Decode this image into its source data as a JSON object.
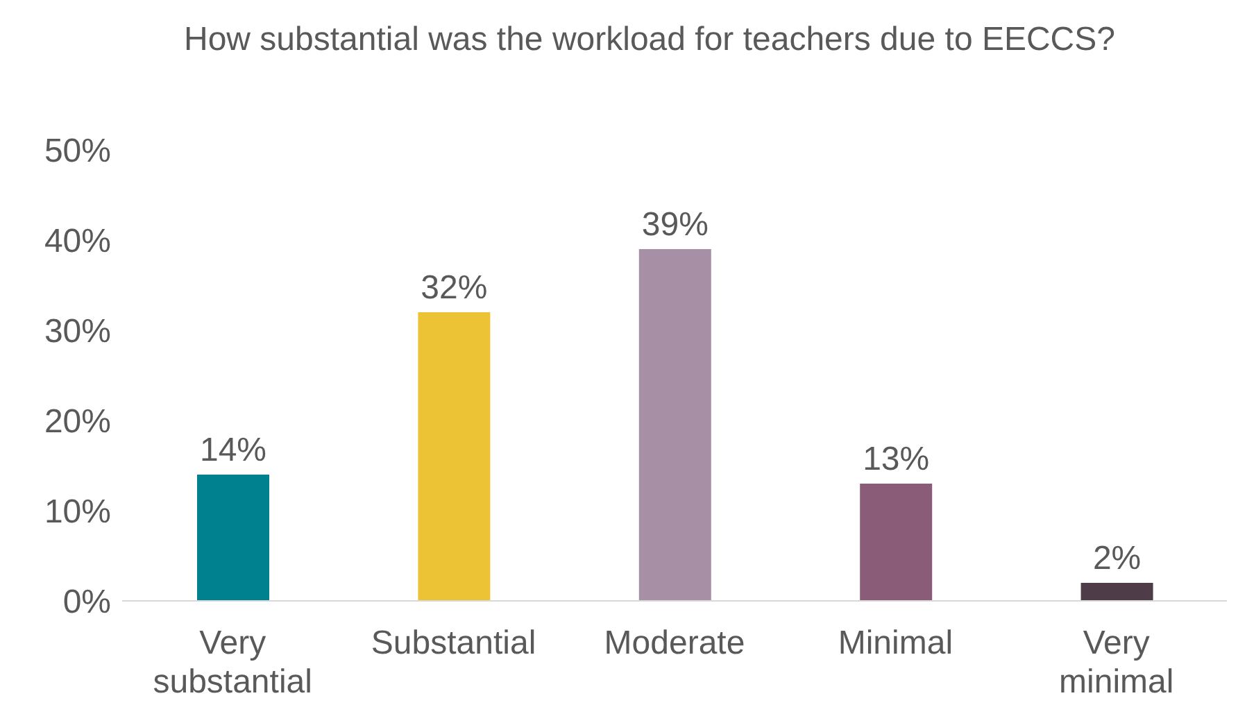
{
  "chart_data": {
    "type": "bar",
    "title": "How substantial was the workload for teachers due to EECCS?",
    "categories": [
      "Very substantial",
      "Substantial",
      "Moderate",
      "Minimal",
      "Very minimal"
    ],
    "values": [
      14,
      32,
      39,
      13,
      2
    ],
    "value_labels": [
      "14%",
      "32%",
      "39%",
      "13%",
      "2%"
    ],
    "colors": [
      "#00818f",
      "#ebc334",
      "#a78fa5",
      "#8a5c77",
      "#4f3c49"
    ],
    "ylim": [
      0,
      50
    ],
    "yticks": [
      {
        "value": 0,
        "label": "0%"
      },
      {
        "value": 10,
        "label": "10%"
      },
      {
        "value": 20,
        "label": "20%"
      },
      {
        "value": 30,
        "label": "30%"
      },
      {
        "value": 40,
        "label": "40%"
      },
      {
        "value": 50,
        "label": "50%"
      }
    ],
    "grid": false
  }
}
